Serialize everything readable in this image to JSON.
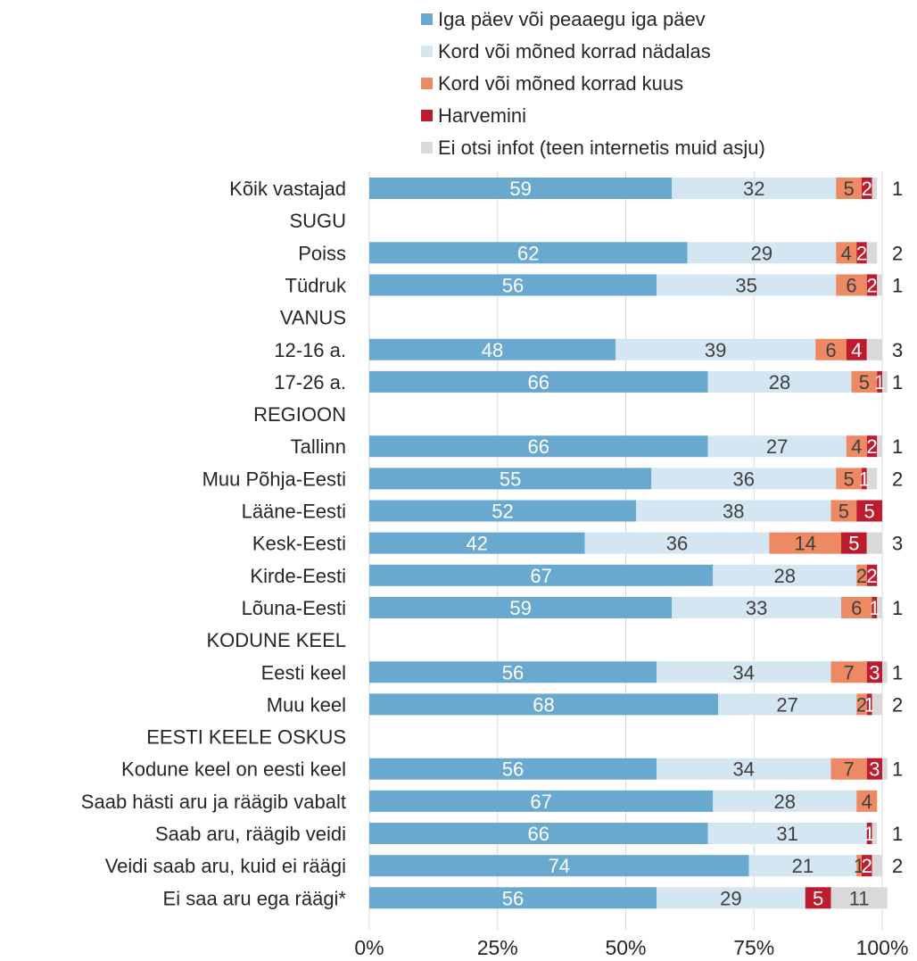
{
  "chart_data": {
    "type": "bar",
    "orientation": "horizontal",
    "stacked": true,
    "title": "",
    "xlabel": "",
    "ylabel": "",
    "xlim": [
      0,
      100
    ],
    "grid": "vertical",
    "legend_position": "top",
    "x_ticks": [
      "0%",
      "25%",
      "50%",
      "75%",
      "100%"
    ],
    "series": [
      {
        "name": "Iga päev või peaaegu iga päev",
        "color": "#6aa9cf"
      },
      {
        "name": "Kord või mõned korrad nädalas",
        "color": "#d3e6f1"
      },
      {
        "name": "Kord või mõned korrad kuus",
        "color": "#ee8a63"
      },
      {
        "name": "Harvemini",
        "color": "#bc1c2e"
      },
      {
        "name": "Ei otsi infot (teen internetis muid asju)",
        "color": "#d9d9d9"
      }
    ],
    "rows": [
      {
        "label": "Kõik vastajad",
        "values": [
          59,
          32,
          5,
          2,
          1
        ]
      },
      {
        "label": "SUGU",
        "header": true
      },
      {
        "label": "Poiss",
        "values": [
          62,
          29,
          4,
          2,
          2
        ]
      },
      {
        "label": "Tüdruk",
        "values": [
          56,
          35,
          6,
          2,
          1
        ]
      },
      {
        "label": "VANUS",
        "header": true
      },
      {
        "label": "12-16 a.",
        "values": [
          48,
          39,
          6,
          4,
          3
        ]
      },
      {
        "label": "17-26 a.",
        "values": [
          66,
          28,
          5,
          1,
          1
        ]
      },
      {
        "label": "REGIOON",
        "header": true
      },
      {
        "label": "Tallinn",
        "values": [
          66,
          27,
          4,
          2,
          1
        ]
      },
      {
        "label": "Muu Põhja-Eesti",
        "values": [
          55,
          36,
          5,
          1,
          2
        ]
      },
      {
        "label": "Lääne-Eesti",
        "values": [
          52,
          38,
          5,
          5,
          0
        ]
      },
      {
        "label": "Kesk-Eesti",
        "values": [
          42,
          36,
          14,
          5,
          3
        ]
      },
      {
        "label": "Kirde-Eesti",
        "values": [
          67,
          28,
          2,
          2,
          0
        ]
      },
      {
        "label": "Lõuna-Eesti",
        "values": [
          59,
          33,
          6,
          1,
          1
        ]
      },
      {
        "label": "KODUNE KEEL",
        "header": true
      },
      {
        "label": "Eesti keel",
        "values": [
          56,
          34,
          7,
          3,
          1
        ]
      },
      {
        "label": "Muu keel",
        "values": [
          68,
          27,
          2,
          1,
          2
        ]
      },
      {
        "label": "EESTI KEELE OSKUS",
        "header": true
      },
      {
        "label": "Kodune keel on eesti keel",
        "values": [
          56,
          34,
          7,
          3,
          1
        ]
      },
      {
        "label": "Saab hästi aru ja räägib vabalt",
        "values": [
          67,
          28,
          4,
          0,
          0
        ]
      },
      {
        "label": "Saab aru, räägib veidi",
        "values": [
          66,
          31,
          0,
          1,
          1
        ]
      },
      {
        "label": "Veidi saab aru, kuid ei räägi",
        "values": [
          74,
          21,
          1,
          2,
          2
        ]
      },
      {
        "label": "Ei saa aru ega räägi*",
        "values": [
          56,
          29,
          0,
          5,
          11
        ]
      }
    ]
  }
}
